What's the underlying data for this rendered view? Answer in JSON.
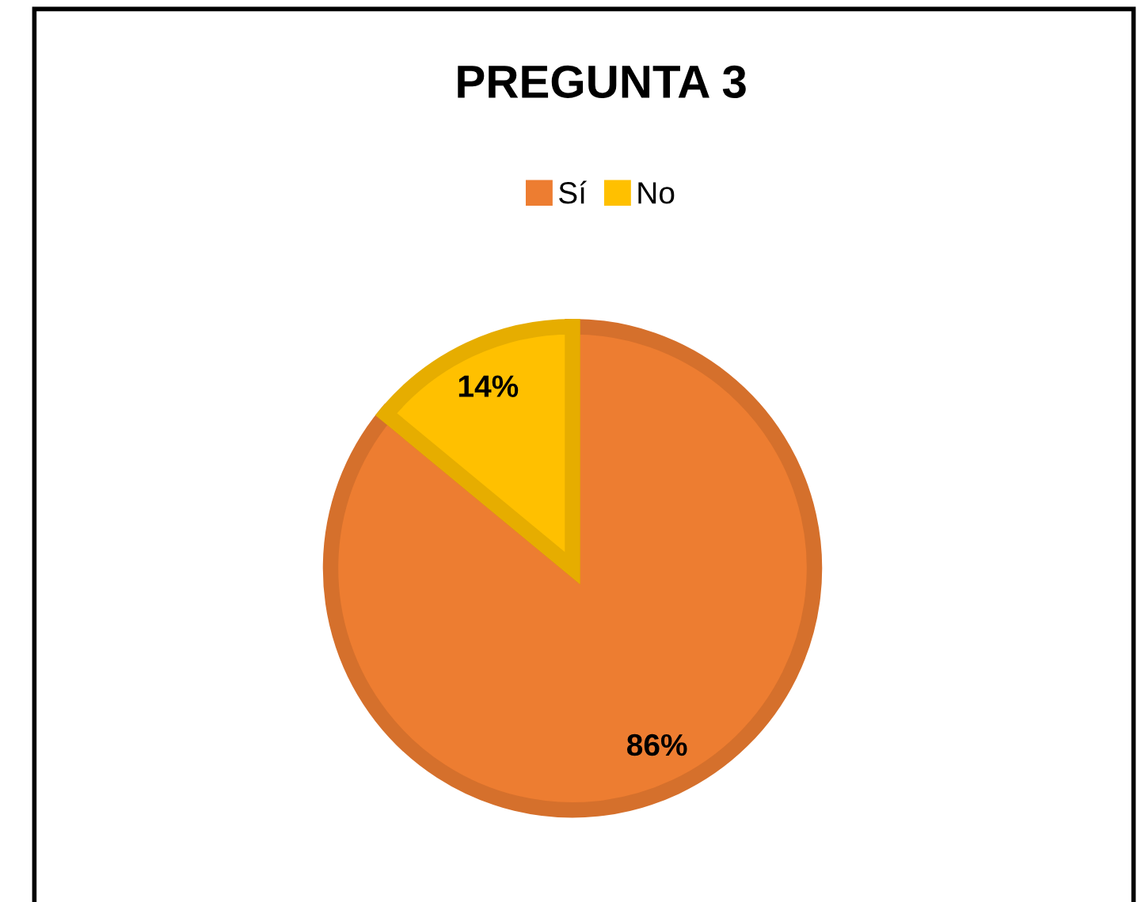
{
  "chart_data": {
    "type": "pie",
    "title": "PREGUNTA 3",
    "categories": [
      "Sí",
      "No"
    ],
    "values": [
      86,
      14
    ],
    "colors": [
      "#ed7d31",
      "#ffc000"
    ],
    "value_labels": [
      "86%",
      "14%"
    ],
    "legend": "top"
  }
}
